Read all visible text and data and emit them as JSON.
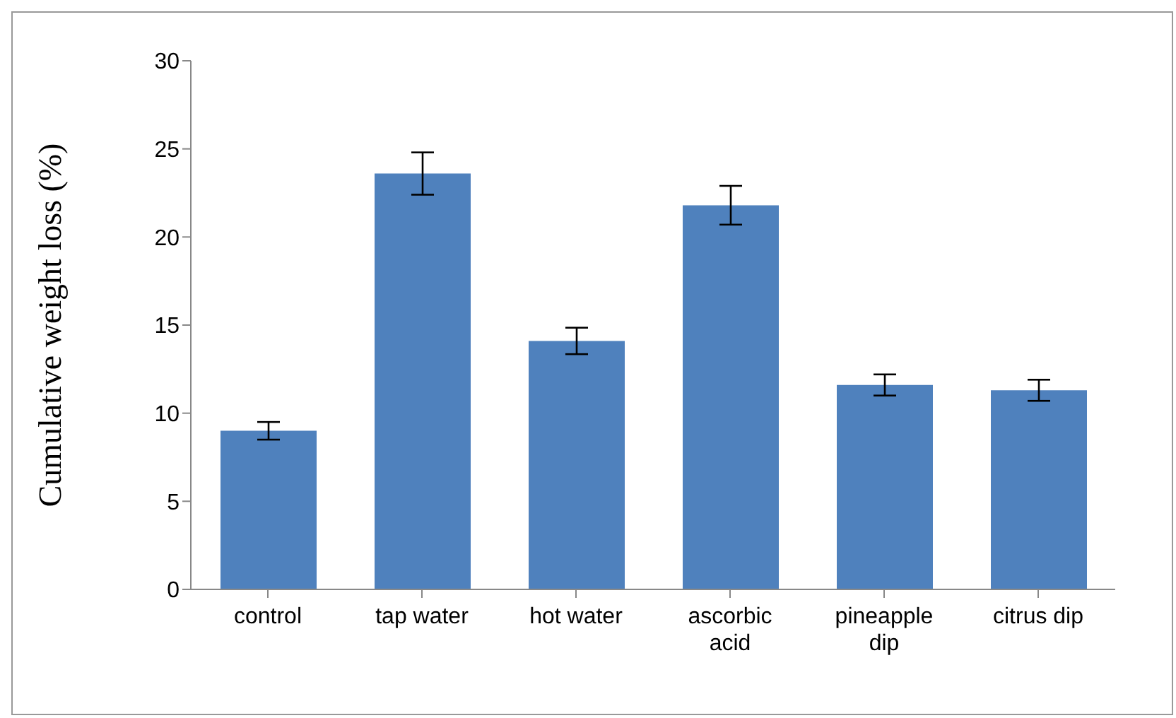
{
  "chart_data": {
    "type": "bar",
    "ylabel": "Cumulative weight loss (%)",
    "categories": [
      "control",
      "tap water",
      "hot water",
      "ascorbic acid",
      "pineapple dip",
      "citrus dip"
    ],
    "values": [
      9.0,
      23.6,
      14.1,
      21.8,
      11.6,
      11.3
    ],
    "errors": [
      0.5,
      1.2,
      0.75,
      1.1,
      0.6,
      0.6
    ],
    "color": "#4f81bd",
    "ylim": [
      0,
      30
    ],
    "yticks": [
      0,
      5,
      10,
      15,
      20,
      25,
      30
    ],
    "grid": false,
    "legend": false
  }
}
